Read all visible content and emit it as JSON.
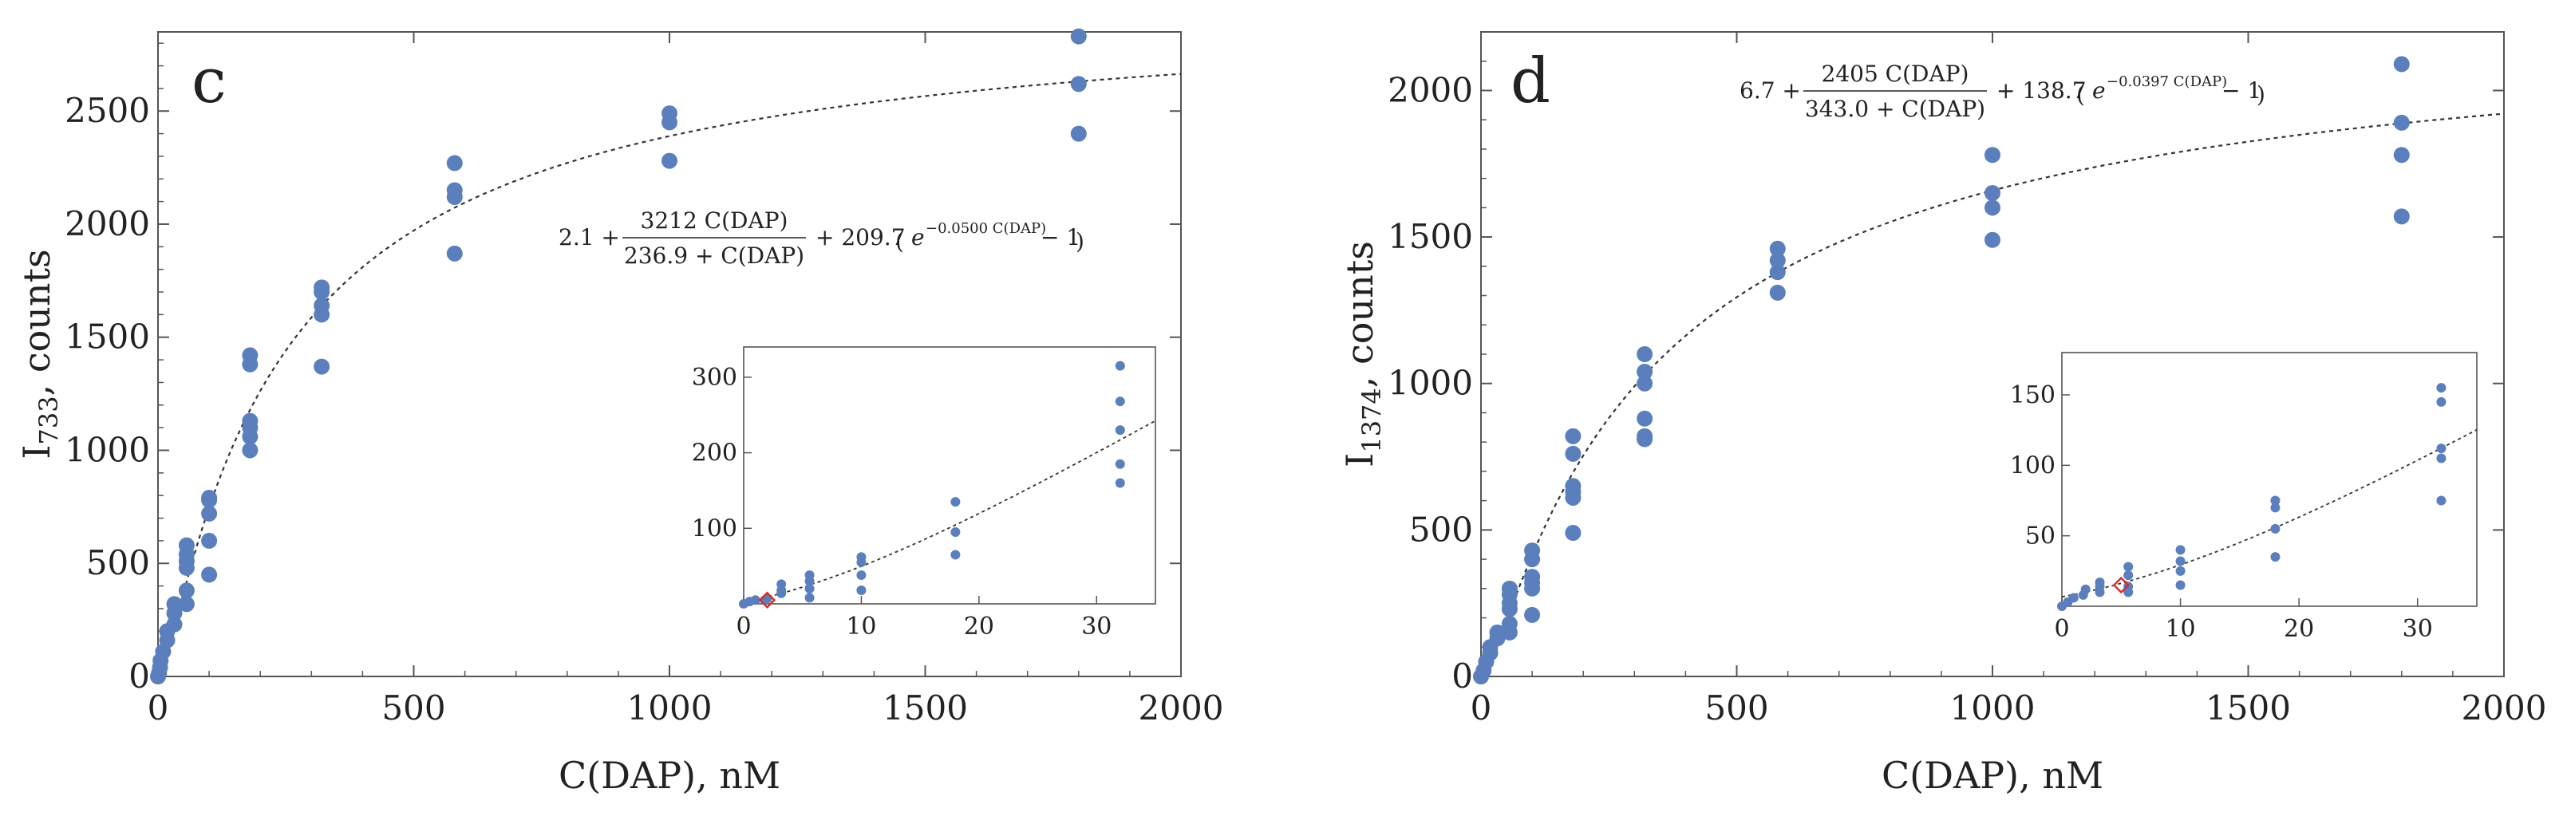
{
  "colors": {
    "points": "#5b7fbd",
    "fit": "#333333",
    "marker": "#d0312d",
    "axis": "#555555"
  },
  "chart_data": [
    {
      "type": "scatter",
      "panel_label": "c",
      "xlabel": "C(DAP), nM",
      "ylabel_base": "I",
      "ylabel_sub": "733",
      "ylabel_rest": ", counts",
      "xlim": [
        0,
        2000
      ],
      "ylim": [
        0,
        2850
      ],
      "xticks": [
        0,
        500,
        1000,
        1500,
        2000
      ],
      "yticks": [
        0,
        500,
        1000,
        1500,
        2000,
        2500
      ],
      "xtick_labels": [
        "0",
        "500",
        "1000",
        "1500",
        "2000"
      ],
      "ytick_labels": [
        "0",
        "500",
        "1000",
        "1500",
        "2000",
        "2500"
      ],
      "points": [
        [
          0,
          0
        ],
        [
          2,
          15
        ],
        [
          4,
          40
        ],
        [
          5,
          70
        ],
        [
          10,
          110
        ],
        [
          18,
          160
        ],
        [
          18,
          200
        ],
        [
          32,
          230
        ],
        [
          32,
          280
        ],
        [
          32,
          320
        ],
        [
          56,
          320
        ],
        [
          56,
          380
        ],
        [
          56,
          480
        ],
        [
          56,
          510
        ],
        [
          56,
          540
        ],
        [
          56,
          580
        ],
        [
          100,
          450
        ],
        [
          100,
          600
        ],
        [
          100,
          720
        ],
        [
          100,
          780
        ],
        [
          100,
          790
        ],
        [
          180,
          1000
        ],
        [
          180,
          1060
        ],
        [
          180,
          1100
        ],
        [
          180,
          1130
        ],
        [
          180,
          1380
        ],
        [
          180,
          1420
        ],
        [
          320,
          1370
        ],
        [
          320,
          1600
        ],
        [
          320,
          1640
        ],
        [
          320,
          1700
        ],
        [
          320,
          1720
        ],
        [
          580,
          1870
        ],
        [
          580,
          2120
        ],
        [
          580,
          2150
        ],
        [
          580,
          2270
        ],
        [
          1000,
          2280
        ],
        [
          1000,
          2450
        ],
        [
          1000,
          2490
        ],
        [
          1800,
          2400
        ],
        [
          1800,
          2620
        ],
        [
          1800,
          2830
        ]
      ],
      "fit": {
        "a": 2.1,
        "b": 3212,
        "k": 236.9,
        "c": 209.7,
        "d": 0.05
      },
      "formula": {
        "lead": "2.1 +",
        "numerator": "3212 C(DAP)",
        "denominator": "236.9 + C(DAP)",
        "tail_coef": "+ 209.7",
        "open_paren": "(",
        "exp_base": "e",
        "exponent": "−0.0500 C(DAP)",
        "tail_end": "− 1",
        "close_paren": ")"
      },
      "inset": {
        "xlim": [
          0,
          35
        ],
        "ylim": [
          0,
          340
        ],
        "xticks": [
          0,
          10,
          20,
          30
        ],
        "yticks": [
          100,
          200,
          300
        ],
        "xtick_labels": [
          "0",
          "10",
          "20",
          "30"
        ],
        "ytick_labels": [
          "100",
          "200",
          "300"
        ],
        "points": [
          [
            0,
            0
          ],
          [
            0.5,
            3
          ],
          [
            1,
            5
          ],
          [
            1.8,
            5
          ],
          [
            2,
            7
          ],
          [
            3.2,
            14
          ],
          [
            3.2,
            18
          ],
          [
            3.2,
            26
          ],
          [
            5.6,
            8
          ],
          [
            5.6,
            20
          ],
          [
            5.6,
            30
          ],
          [
            5.6,
            38
          ],
          [
            10,
            18
          ],
          [
            10,
            38
          ],
          [
            10,
            55
          ],
          [
            10,
            62
          ],
          [
            18,
            65
          ],
          [
            18,
            95
          ],
          [
            18,
            135
          ],
          [
            32,
            160
          ],
          [
            32,
            185
          ],
          [
            32,
            230
          ],
          [
            32,
            268
          ],
          [
            32,
            315
          ]
        ],
        "marker": [
          2,
          5
        ]
      }
    },
    {
      "type": "scatter",
      "panel_label": "d",
      "xlabel": "C(DAP), nM",
      "ylabel_base": "I",
      "ylabel_sub": "1374",
      "ylabel_rest": ", counts",
      "xlim": [
        0,
        2000
      ],
      "ylim": [
        0,
        2200
      ],
      "xticks": [
        0,
        500,
        1000,
        1500,
        2000
      ],
      "yticks": [
        0,
        500,
        1000,
        1500,
        2000
      ],
      "xtick_labels": [
        "0",
        "500",
        "1000",
        "1500",
        "2000"
      ],
      "ytick_labels": [
        "0",
        "500",
        "1000",
        "1500",
        "2000"
      ],
      "points": [
        [
          0,
          0
        ],
        [
          5,
          20
        ],
        [
          10,
          50
        ],
        [
          18,
          80
        ],
        [
          18,
          100
        ],
        [
          32,
          130
        ],
        [
          32,
          150
        ],
        [
          56,
          150
        ],
        [
          56,
          180
        ],
        [
          56,
          230
        ],
        [
          56,
          250
        ],
        [
          56,
          280
        ],
        [
          56,
          300
        ],
        [
          100,
          210
        ],
        [
          100,
          300
        ],
        [
          100,
          320
        ],
        [
          100,
          340
        ],
        [
          100,
          400
        ],
        [
          100,
          430
        ],
        [
          180,
          490
        ],
        [
          180,
          610
        ],
        [
          180,
          630
        ],
        [
          180,
          650
        ],
        [
          180,
          760
        ],
        [
          180,
          820
        ],
        [
          320,
          810
        ],
        [
          320,
          820
        ],
        [
          320,
          880
        ],
        [
          320,
          1000
        ],
        [
          320,
          1040
        ],
        [
          320,
          1100
        ],
        [
          580,
          1310
        ],
        [
          580,
          1380
        ],
        [
          580,
          1420
        ],
        [
          580,
          1460
        ],
        [
          1000,
          1490
        ],
        [
          1000,
          1600
        ],
        [
          1000,
          1650
        ],
        [
          1000,
          1780
        ],
        [
          1800,
          1570
        ],
        [
          1800,
          1780
        ],
        [
          1800,
          1890
        ],
        [
          1800,
          2090
        ]
      ],
      "fit": {
        "a": 6.7,
        "b": 2405,
        "k": 343.0,
        "c": 138.7,
        "d": 0.0397
      },
      "formula": {
        "lead": "6.7 +",
        "numerator": "2405 C(DAP)",
        "denominator": "343.0 + C(DAP)",
        "tail_coef": "+ 138.7",
        "open_paren": "(",
        "exp_base": "e",
        "exponent": "−0.0397 C(DAP)",
        "tail_end": "− 1",
        "close_paren": ")"
      },
      "inset": {
        "xlim": [
          0,
          35
        ],
        "ylim": [
          0,
          180
        ],
        "xticks": [
          0,
          10,
          20,
          30
        ],
        "yticks": [
          50,
          100,
          150
        ],
        "xtick_labels": [
          "0",
          "10",
          "20",
          "30"
        ],
        "ytick_labels": [
          "50",
          "100",
          "150"
        ],
        "points": [
          [
            0,
            0
          ],
          [
            0.5,
            3
          ],
          [
            1,
            6
          ],
          [
            1.8,
            8
          ],
          [
            2,
            12
          ],
          [
            3.2,
            10
          ],
          [
            3.2,
            14
          ],
          [
            3.2,
            17
          ],
          [
            5.6,
            10
          ],
          [
            5.6,
            14
          ],
          [
            5.6,
            22
          ],
          [
            5.6,
            28
          ],
          [
            10,
            15
          ],
          [
            10,
            25
          ],
          [
            10,
            32
          ],
          [
            10,
            40
          ],
          [
            18,
            35
          ],
          [
            18,
            55
          ],
          [
            18,
            70
          ],
          [
            18,
            75
          ],
          [
            32,
            75
          ],
          [
            32,
            105
          ],
          [
            32,
            112
          ],
          [
            32,
            145
          ],
          [
            32,
            155
          ]
        ],
        "marker": [
          5,
          15
        ]
      }
    }
  ]
}
